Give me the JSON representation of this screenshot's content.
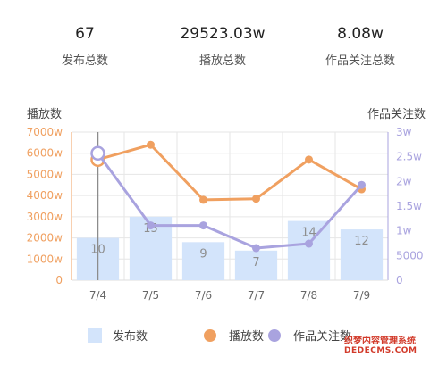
{
  "stats": [
    {
      "value": "67",
      "label": "发布总数"
    },
    {
      "value": "29523.03w",
      "label": "播放总数"
    },
    {
      "value": "8.08w",
      "label": "作品关注总数"
    }
  ],
  "chart_data": {
    "type": "bar+line",
    "left_axis_title": "播放数",
    "right_axis_title": "作品关注数",
    "categories": [
      "7/4",
      "7/5",
      "7/6",
      "7/7",
      "7/8",
      "7/9"
    ],
    "left_ticks": [
      "0",
      "1000w",
      "2000w",
      "3000w",
      "4000w",
      "5000w",
      "6000w",
      "7000w"
    ],
    "left_range": [
      0,
      7000
    ],
    "right_ticks": [
      "0",
      "5000",
      "1w",
      "1.5w",
      "2w",
      "2.5w",
      "3w"
    ],
    "right_range": [
      0,
      30000
    ],
    "series": [
      {
        "name": "发布数",
        "type": "bar",
        "color": "#d3e4fb",
        "values": [
          10,
          15,
          9,
          7,
          14,
          12
        ],
        "labels": [
          "10",
          "15",
          "9",
          "7",
          "14",
          "12"
        ],
        "bar_scale_max": 35
      },
      {
        "name": "播放数",
        "type": "line",
        "axis": "left",
        "color": "#f0a060",
        "values": [
          5700,
          6400,
          3800,
          3850,
          5700,
          4300
        ]
      },
      {
        "name": "作品关注数",
        "type": "line",
        "axis": "right",
        "color": "#a9a3df",
        "values": [
          25700,
          11100,
          11100,
          6500,
          7400,
          19300
        ]
      }
    ],
    "highlighted_category": "7/4",
    "grid": true
  },
  "legend": [
    {
      "label": "发布数"
    },
    {
      "label": "播放数"
    },
    {
      "label": "作品关注数"
    }
  ],
  "watermark": {
    "line1": "织梦内容管理系统",
    "line2": "DEDECMS.COM"
  }
}
